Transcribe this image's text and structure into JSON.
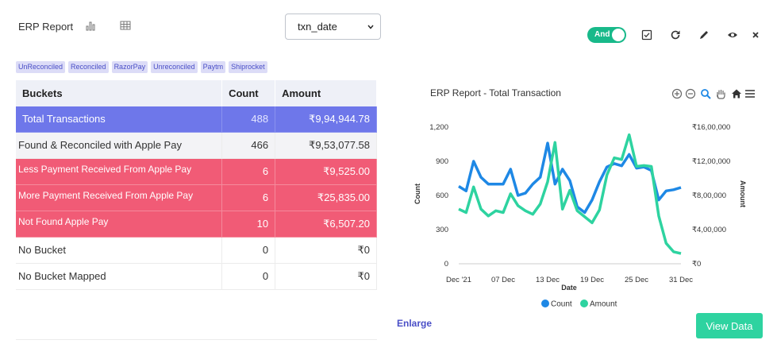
{
  "header": {
    "title": "ERP Report",
    "date_field_select": {
      "value": "txn_date"
    },
    "toggle_label": "And"
  },
  "icons": {
    "chart_view": "bar-chart-icon",
    "table_view": "grid-icon",
    "toolbar": [
      "checkbox-icon",
      "refresh-icon",
      "pencil-icon",
      "eye-icon",
      "close-icon"
    ],
    "chart_toolbar": [
      "zoom-in-icon",
      "zoom-out-icon",
      "search-zoom-icon",
      "hand-pan-icon",
      "home-icon",
      "menu-icon"
    ]
  },
  "chips": [
    "UnReconciled",
    "Reconciled",
    "RazorPay",
    "Unreconciled",
    "Paytm",
    "Shiprocket"
  ],
  "table": {
    "headers": [
      "Buckets",
      "Count",
      "Amount"
    ],
    "total": {
      "bucket": "Total  Transactions",
      "count": "488",
      "amount": "₹9,94,944.78"
    },
    "rows": [
      {
        "bucket": "Found & Reconciled with Apple Pay",
        "count": "466",
        "amount": "₹9,53,077.58",
        "style": "gray"
      },
      {
        "bucket": "Less Payment Received From Apple Pay",
        "count": "6",
        "amount": "₹9,525.00",
        "style": "red"
      },
      {
        "bucket": "More Payment Received From Apple Pay",
        "count": "6",
        "amount": "₹25,835.00",
        "style": "red"
      },
      {
        "bucket": "Not Found Apple Pay",
        "count": "10",
        "amount": "₹6,507.20",
        "style": "red"
      },
      {
        "bucket": "No Bucket",
        "count": "0",
        "amount": "₹0",
        "style": "white"
      },
      {
        "bucket": "No Bucket Mapped",
        "count": "0",
        "amount": "₹0",
        "style": "white"
      }
    ]
  },
  "links": {
    "enlarge": "Enlarge"
  },
  "buttons": {
    "view_data": "View Data"
  },
  "colors": {
    "count": "#1e88e5",
    "amount": "#2ed3a0",
    "accent": "#6e77ea",
    "alert": "#f15b76"
  },
  "chart_data": {
    "type": "line",
    "title": "ERP Report - Total Transaction",
    "xlabel": "Date",
    "ylabel_left": "Count",
    "ylabel_right": "Amount",
    "x_ticks": [
      "Dec '21",
      "07 Dec",
      "13 Dec",
      "19 Dec",
      "25 Dec",
      "31 Dec"
    ],
    "x_range": [
      1,
      31
    ],
    "y_left": {
      "range": [
        0,
        1200
      ],
      "ticks": [
        "0",
        "300",
        "600",
        "900",
        "1,200"
      ]
    },
    "y_right": {
      "range": [
        0,
        1600000
      ],
      "ticks": [
        "₹0",
        "₹4,00,000",
        "₹8,00,000",
        "₹12,00,000",
        "₹16,00,000"
      ]
    },
    "legend": "bottom-center",
    "series": [
      {
        "name": "Count",
        "axis": "left",
        "x": [
          1,
          2,
          3,
          4,
          5,
          6,
          7,
          8,
          9,
          10,
          11,
          12,
          13,
          14,
          15,
          16,
          17,
          18,
          19,
          20,
          21,
          22,
          23,
          24,
          25,
          26,
          27,
          28,
          29,
          30,
          31
        ],
        "values": [
          680,
          640,
          900,
          760,
          700,
          700,
          700,
          830,
          600,
          620,
          700,
          760,
          1060,
          700,
          830,
          730,
          500,
          450,
          560,
          720,
          850,
          880,
          860,
          960,
          840,
          850,
          820,
          560,
          640,
          650,
          670
        ]
      },
      {
        "name": "Amount",
        "axis": "right",
        "x": [
          1,
          2,
          3,
          4,
          5,
          6,
          7,
          8,
          9,
          10,
          11,
          12,
          13,
          14,
          15,
          16,
          17,
          18,
          19,
          20,
          21,
          22,
          23,
          24,
          25,
          26,
          27,
          28,
          29,
          30,
          31
        ],
        "values": [
          640000,
          600000,
          900000,
          640000,
          560000,
          620000,
          600000,
          820000,
          680000,
          620000,
          580000,
          700000,
          960000,
          1420000,
          640000,
          860000,
          620000,
          550000,
          480000,
          630000,
          1040000,
          1240000,
          1220000,
          1510000,
          1140000,
          1150000,
          1140000,
          560000,
          240000,
          140000,
          120000
        ]
      }
    ]
  }
}
